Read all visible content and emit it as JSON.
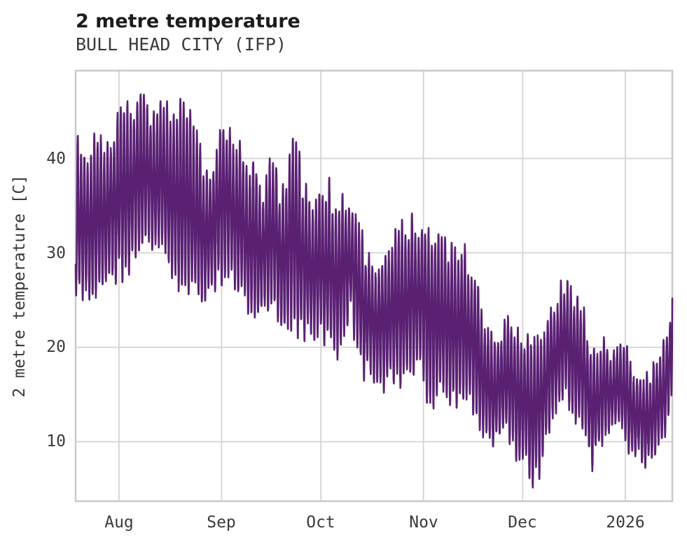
{
  "chart_data": {
    "type": "line",
    "title": "2 metre temperature",
    "subtitle": "BULL HEAD CITY (IFP)",
    "xlabel": "",
    "ylabel": "2 metre temperature [C]",
    "grid": true,
    "legend_position": "none",
    "line_color": "#5a2173",
    "grid_color": "#d3d3d3",
    "axis_border_color": "#c9c9c9",
    "text_color": "#3a3a3a",
    "title_color": "#1c1c1c",
    "ylim": [
      3.7,
      49.3
    ],
    "yticks": [
      10,
      20,
      30,
      40
    ],
    "x_span_days": 180.3,
    "xticks": [
      {
        "label": "Aug",
        "day": 13.1
      },
      {
        "label": "Sep",
        "day": 44.1
      },
      {
        "label": "Oct",
        "day": 74.1
      },
      {
        "label": "Nov",
        "day": 105.1
      },
      {
        "label": "Dec",
        "day": 135.1
      },
      {
        "label": "2026",
        "day": 166.1
      }
    ],
    "series": [
      {
        "name": "2 metre temperature",
        "sampling_hours": 1,
        "diurnal_cycle": true,
        "diurnal_peak_dayfraction": 0.64,
        "envelope_daily": [
          [
            0,
            27,
            42
          ],
          [
            2,
            25.5,
            40
          ],
          [
            4,
            26,
            39.5
          ],
          [
            6,
            25.5,
            41.5
          ],
          [
            9,
            27.5,
            40.5
          ],
          [
            12,
            28,
            43.5
          ],
          [
            15,
            28.5,
            44.5
          ],
          [
            18,
            29.5,
            45.5
          ],
          [
            20,
            30,
            47.3
          ],
          [
            22,
            31.5,
            45.5
          ],
          [
            24,
            31,
            44
          ],
          [
            26,
            30,
            46
          ],
          [
            28,
            28.5,
            44.5
          ],
          [
            30,
            28,
            42.5
          ],
          [
            32,
            27,
            46
          ],
          [
            34,
            26.5,
            44.5
          ],
          [
            36,
            25.5,
            42
          ],
          [
            38,
            25,
            40
          ],
          [
            40,
            26,
            38.5
          ],
          [
            42,
            26.5,
            40
          ],
          [
            44,
            27.5,
            44.2
          ],
          [
            46,
            28,
            43.5
          ],
          [
            48,
            26.5,
            41
          ],
          [
            50,
            26,
            40.5
          ],
          [
            52,
            24,
            38.5
          ],
          [
            54,
            23.5,
            40
          ],
          [
            56,
            24,
            36
          ],
          [
            58,
            24.5,
            38
          ],
          [
            60,
            25,
            39.5
          ],
          [
            62,
            23,
            35.5
          ],
          [
            64,
            23,
            38
          ],
          [
            65,
            23.5,
            41.3
          ],
          [
            67,
            22.5,
            40.2
          ],
          [
            69,
            22,
            37
          ],
          [
            71,
            21.5,
            35
          ],
          [
            73,
            21.5,
            35.5
          ],
          [
            75,
            21,
            36.8
          ],
          [
            77,
            20,
            36
          ],
          [
            79,
            19,
            35.5
          ],
          [
            81,
            22,
            34.5
          ],
          [
            83,
            24,
            35.2
          ],
          [
            85,
            20,
            33
          ],
          [
            87,
            18,
            30.5
          ],
          [
            89,
            17.5,
            28.5
          ],
          [
            92,
            16.5,
            28
          ],
          [
            94,
            16.5,
            29.5
          ],
          [
            96,
            17,
            31
          ],
          [
            98,
            16,
            31.5
          ],
          [
            100,
            16.5,
            32.5
          ],
          [
            102,
            18,
            33.1
          ],
          [
            104,
            17.5,
            33
          ],
          [
            106,
            16,
            32.5
          ],
          [
            108,
            14.8,
            31.5
          ],
          [
            110,
            15,
            31
          ],
          [
            112,
            14.5,
            30.5
          ],
          [
            114,
            14,
            30.5
          ],
          [
            116,
            14.5,
            30
          ],
          [
            118,
            15,
            29.5
          ],
          [
            120,
            13.5,
            28
          ],
          [
            122,
            12,
            25
          ],
          [
            124,
            10,
            22.5
          ],
          [
            126,
            9.5,
            20.5
          ],
          [
            128,
            10.5,
            21.5
          ],
          [
            130,
            11,
            23
          ],
          [
            132,
            9.5,
            22.5
          ],
          [
            134,
            8.5,
            21.5
          ],
          [
            136,
            7,
            21
          ],
          [
            138,
            6,
            20
          ],
          [
            140,
            6.5,
            21
          ],
          [
            142,
            10,
            22.5
          ],
          [
            144,
            13,
            24
          ],
          [
            146,
            14,
            25.5
          ],
          [
            148,
            14.5,
            26.1
          ],
          [
            150,
            13.5,
            25
          ],
          [
            152,
            12,
            24.8
          ],
          [
            154,
            11,
            23
          ],
          [
            156,
            7.5,
            18.5
          ],
          [
            158,
            9.5,
            19.5
          ],
          [
            160,
            11,
            20.5
          ],
          [
            162,
            11.5,
            18.5
          ],
          [
            164,
            11.5,
            20
          ],
          [
            166,
            10.5,
            19.5
          ],
          [
            168,
            9,
            18
          ],
          [
            170,
            8.5,
            17
          ],
          [
            172,
            8,
            16.5
          ],
          [
            174,
            8,
            17.5
          ],
          [
            176,
            9,
            18.5
          ],
          [
            178,
            10.5,
            20.5
          ],
          [
            180,
            14,
            24
          ],
          [
            180.3,
            21,
            25.2
          ]
        ]
      }
    ]
  }
}
